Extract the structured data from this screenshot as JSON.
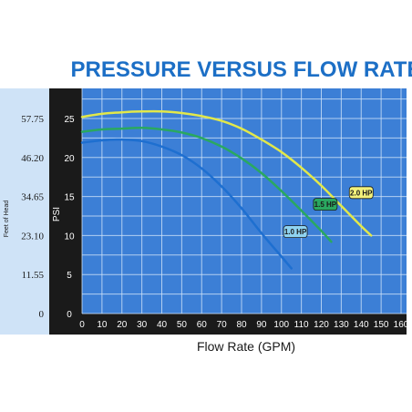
{
  "chart_data": {
    "type": "line",
    "title": "PRESSURE VERSUS FLOW RATE",
    "xlabel": "Flow Rate (GPM)",
    "ylabel": "PSI",
    "y2label": "Feet of Head",
    "xlim": [
      0,
      160
    ],
    "ylim": [
      0,
      28
    ],
    "x_ticks": [
      0,
      10,
      20,
      30,
      40,
      50,
      60,
      70,
      80,
      90,
      100,
      110,
      120,
      130,
      140,
      150,
      160
    ],
    "y_ticks": [
      0,
      5,
      10,
      15,
      20,
      25
    ],
    "y_tick_labels": [
      "0",
      "5",
      "10",
      "15",
      "20",
      "25"
    ],
    "feet_of_head_ticks": [
      {
        "psi": 0,
        "label": "0"
      },
      {
        "psi": 5,
        "label": "11.55"
      },
      {
        "psi": 10,
        "label": "23.10"
      },
      {
        "psi": 15,
        "label": "34.65"
      },
      {
        "psi": 20,
        "label": "46.20"
      },
      {
        "psi": 25,
        "label": "57.75"
      }
    ],
    "grid": true,
    "series": [
      {
        "name": "1.0 HP",
        "color": "#1e6fd0",
        "x": [
          0,
          10,
          20,
          30,
          40,
          50,
          60,
          70,
          80,
          90,
          100,
          105
        ],
        "y": [
          21.9,
          22.2,
          22.3,
          22.1,
          21.4,
          20.3,
          18.6,
          16.3,
          13.5,
          10.3,
          7.3,
          5.8
        ]
      },
      {
        "name": "1.5 HP",
        "color": "#2aa860",
        "x": [
          0,
          10,
          20,
          30,
          40,
          50,
          60,
          70,
          80,
          90,
          100,
          110,
          120,
          125
        ],
        "y": [
          23.3,
          23.6,
          23.7,
          23.8,
          23.6,
          23.2,
          22.5,
          21.4,
          19.9,
          18.0,
          15.7,
          13.2,
          10.6,
          9.2
        ]
      },
      {
        "name": "2.0 HP",
        "color": "#e2e84a",
        "x": [
          0,
          10,
          20,
          30,
          40,
          50,
          60,
          70,
          80,
          90,
          100,
          110,
          120,
          130,
          140,
          145
        ],
        "y": [
          25.2,
          25.6,
          25.8,
          25.9,
          25.9,
          25.7,
          25.3,
          24.7,
          23.7,
          22.3,
          20.7,
          18.7,
          16.4,
          13.8,
          11.2,
          10.0
        ]
      }
    ],
    "legend_tags": [
      {
        "label": "1.0 HP",
        "bg": "#8fd3f0",
        "color": "#1e6fd0",
        "at_x": 107,
        "at_y": 10.5
      },
      {
        "label": "1.5 HP",
        "bg": "#2aa860",
        "color": "#2aa860",
        "at_x": 122,
        "at_y": 14.0
      },
      {
        "label": "2.0 HP",
        "bg": "#f3f17a",
        "color": "#e2e84a",
        "at_x": 140,
        "at_y": 15.5
      }
    ]
  },
  "colors": {
    "title": "#1c6fc6",
    "plot_bg": "#3c7fd6",
    "grid": "#cfe3f7",
    "y_axis_band": "#1a1a1a",
    "y_axis_text": "#ffffff",
    "head_band": "#cfe3f7",
    "x_axis_band": "#1a1a1a",
    "x_axis_text": "#ffffff"
  }
}
